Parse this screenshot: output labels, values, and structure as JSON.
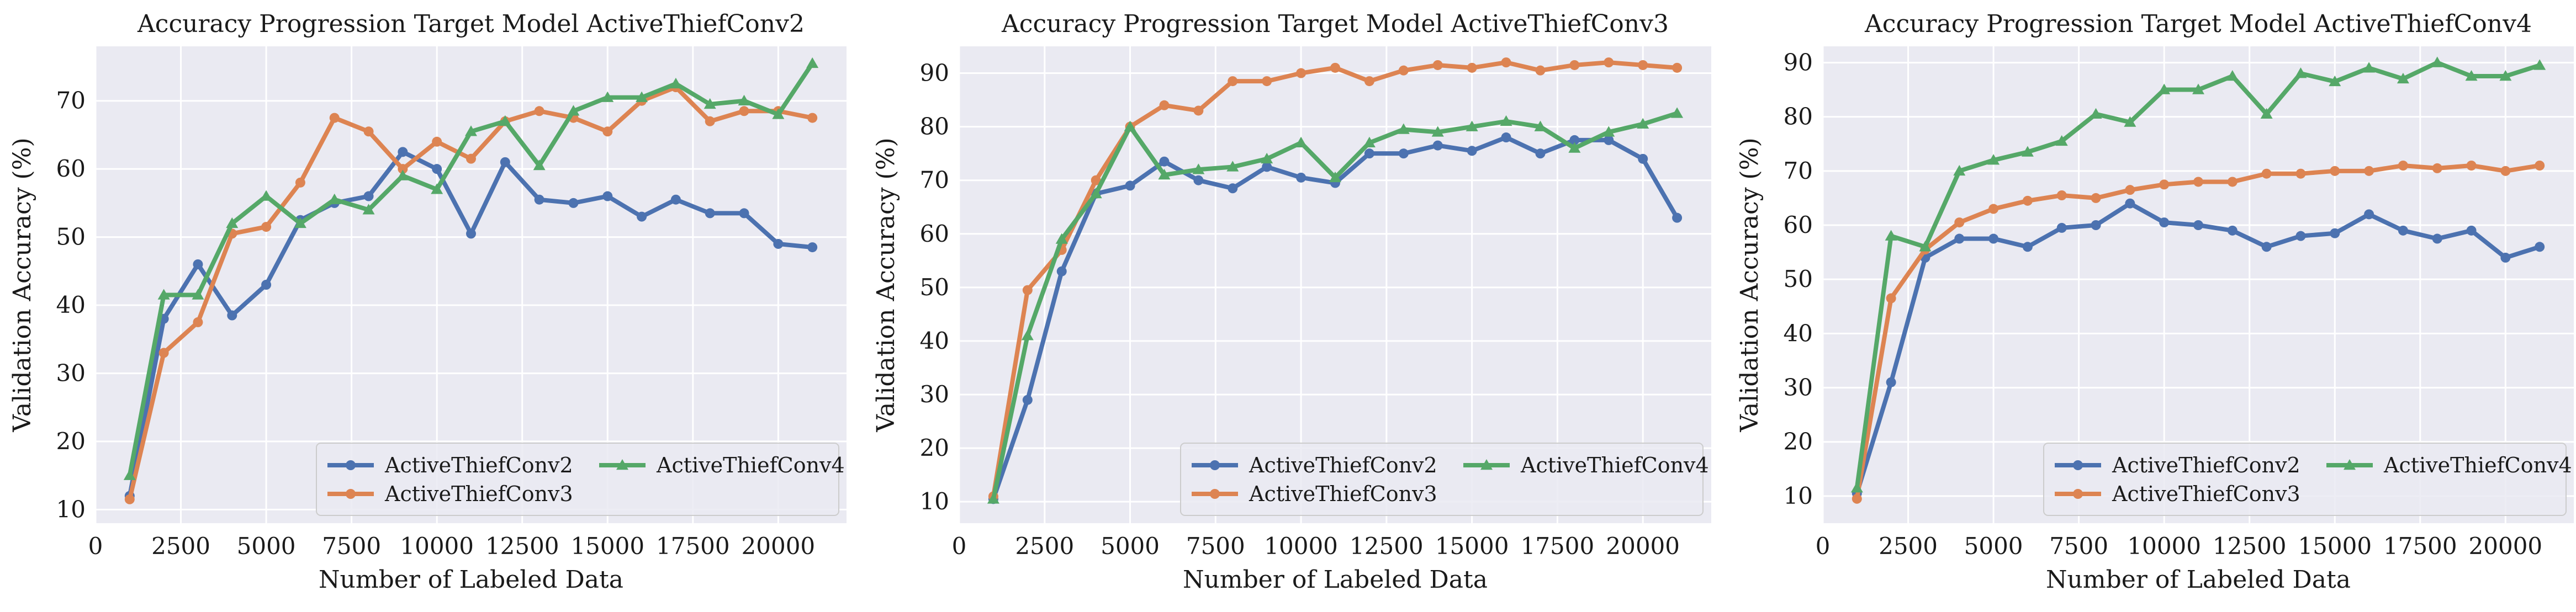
{
  "chart_data": [
    {
      "type": "line",
      "title": "Accuracy Progression Target Model ActiveThiefConv2",
      "xlabel": "Number of Labeled Data",
      "ylabel": "Validation Accuracy (%)",
      "xlim": [
        0,
        22000
      ],
      "ylim": [
        8,
        78
      ],
      "xticks": [
        0,
        2500,
        5000,
        7500,
        10000,
        12500,
        15000,
        17500,
        20000
      ],
      "xtick_labels": [
        "0",
        "2500",
        "5000",
        "7500",
        "10000",
        "12500",
        "15000",
        "17500",
        "20000"
      ],
      "yticks": [
        10,
        20,
        30,
        40,
        50,
        60,
        70
      ],
      "ytick_labels": [
        "10",
        "20",
        "30",
        "40",
        "50",
        "60",
        "70"
      ],
      "grid": true,
      "legend_position": "lower-right",
      "x": [
        1000,
        2000,
        3000,
        4000,
        5000,
        6000,
        7000,
        8000,
        9000,
        10000,
        11000,
        12000,
        13000,
        14000,
        15000,
        16000,
        17000,
        18000,
        19000,
        20000,
        21000
      ],
      "series": [
        {
          "name": "ActiveThiefConv2",
          "color": "#4c72b0",
          "marker": "circle",
          "values": [
            12,
            38,
            46,
            38.5,
            43,
            52.5,
            55,
            56,
            62.5,
            60,
            50.5,
            61,
            55.5,
            55,
            56,
            53,
            55.5,
            53.5,
            53.5,
            49,
            48.5
          ]
        },
        {
          "name": "ActiveThiefConv3",
          "color": "#dd8452",
          "marker": "circle",
          "values": [
            11.5,
            33,
            37.5,
            50.5,
            51.5,
            58,
            67.5,
            65.5,
            60,
            64,
            61.5,
            67,
            68.5,
            67.5,
            65.5,
            70,
            72,
            67,
            68.5,
            68.5,
            67.5
          ]
        },
        {
          "name": "ActiveThiefConv4",
          "color": "#55a868",
          "marker": "triangle",
          "values": [
            15,
            41.5,
            41.5,
            52,
            56,
            52,
            55.5,
            54,
            59,
            57,
            65.5,
            67,
            60.5,
            68.5,
            70.5,
            70.5,
            72.5,
            69.5,
            70,
            68,
            75.5
          ]
        }
      ]
    },
    {
      "type": "line",
      "title": "Accuracy Progression Target Model ActiveThiefConv3",
      "xlabel": "Number of Labeled Data",
      "ylabel": "Validation Accuracy (%)",
      "xlim": [
        0,
        22000
      ],
      "ylim": [
        6,
        95
      ],
      "xticks": [
        0,
        2500,
        5000,
        7500,
        10000,
        12500,
        15000,
        17500,
        20000
      ],
      "xtick_labels": [
        "0",
        "2500",
        "5000",
        "7500",
        "10000",
        "12500",
        "15000",
        "17500",
        "20000"
      ],
      "yticks": [
        10,
        20,
        30,
        40,
        50,
        60,
        70,
        80,
        90
      ],
      "ytick_labels": [
        "10",
        "20",
        "30",
        "40",
        "50",
        "60",
        "70",
        "80",
        "90"
      ],
      "grid": true,
      "legend_position": "lower-right",
      "x": [
        1000,
        2000,
        3000,
        4000,
        5000,
        6000,
        7000,
        8000,
        9000,
        10000,
        11000,
        12000,
        13000,
        14000,
        15000,
        16000,
        17000,
        18000,
        19000,
        20000,
        21000
      ],
      "series": [
        {
          "name": "ActiveThiefConv2",
          "color": "#4c72b0",
          "marker": "circle",
          "values": [
            10.5,
            29,
            53,
            67.5,
            69,
            73.5,
            70,
            68.5,
            72.5,
            70.5,
            69.5,
            75,
            75,
            76.5,
            75.5,
            78,
            75,
            77.5,
            77.5,
            74,
            63
          ]
        },
        {
          "name": "ActiveThiefConv3",
          "color": "#dd8452",
          "marker": "circle",
          "values": [
            11,
            49.5,
            57,
            70,
            80,
            84,
            83,
            88.5,
            88.5,
            90,
            91,
            88.5,
            90.5,
            91.5,
            91,
            92,
            90.5,
            91.5,
            92,
            91.5,
            91
          ]
        },
        {
          "name": "ActiveThiefConv4",
          "color": "#55a868",
          "marker": "triangle",
          "values": [
            10.5,
            41,
            59,
            67.5,
            80,
            71,
            72,
            72.5,
            74,
            77,
            70.5,
            77,
            79.5,
            79,
            80,
            81,
            80,
            76,
            79,
            80.5,
            82.5
          ]
        }
      ]
    },
    {
      "type": "line",
      "title": "Accuracy Progression Target Model ActiveThiefConv4",
      "xlabel": "Number of Labeled Data",
      "ylabel": "Validation Accuracy (%)",
      "xlim": [
        0,
        22000
      ],
      "ylim": [
        5,
        93
      ],
      "xticks": [
        0,
        2500,
        5000,
        7500,
        10000,
        12500,
        15000,
        17500,
        20000
      ],
      "xtick_labels": [
        "0",
        "2500",
        "5000",
        "7500",
        "10000",
        "12500",
        "15000",
        "17500",
        "20000"
      ],
      "yticks": [
        10,
        20,
        30,
        40,
        50,
        60,
        70,
        80,
        90
      ],
      "ytick_labels": [
        "10",
        "20",
        "30",
        "40",
        "50",
        "60",
        "70",
        "80",
        "90"
      ],
      "grid": true,
      "legend_position": "lower-right",
      "x": [
        1000,
        2000,
        3000,
        4000,
        5000,
        6000,
        7000,
        8000,
        9000,
        10000,
        11000,
        12000,
        13000,
        14000,
        15000,
        16000,
        17000,
        18000,
        19000,
        20000,
        21000
      ],
      "series": [
        {
          "name": "ActiveThiefConv2",
          "color": "#4c72b0",
          "marker": "circle",
          "values": [
            10.5,
            31,
            54,
            57.5,
            57.5,
            56,
            59.5,
            60,
            64,
            60.5,
            60,
            59,
            56,
            58,
            58.5,
            62,
            59,
            57.5,
            59,
            54,
            56
          ]
        },
        {
          "name": "ActiveThiefConv3",
          "color": "#dd8452",
          "marker": "circle",
          "values": [
            9.5,
            46.5,
            55.5,
            60.5,
            63,
            64.5,
            65.5,
            65,
            66.5,
            67.5,
            68,
            68,
            69.5,
            69.5,
            70,
            70,
            71,
            70.5,
            71,
            70,
            71
          ]
        },
        {
          "name": "ActiveThiefConv4",
          "color": "#55a868",
          "marker": "triangle",
          "values": [
            11.5,
            58,
            56,
            70,
            72,
            73.5,
            75.5,
            80.5,
            79,
            85,
            85,
            87.5,
            80.5,
            88,
            86.5,
            89,
            87,
            90,
            87.5,
            87.5,
            89.5
          ]
        }
      ]
    }
  ]
}
